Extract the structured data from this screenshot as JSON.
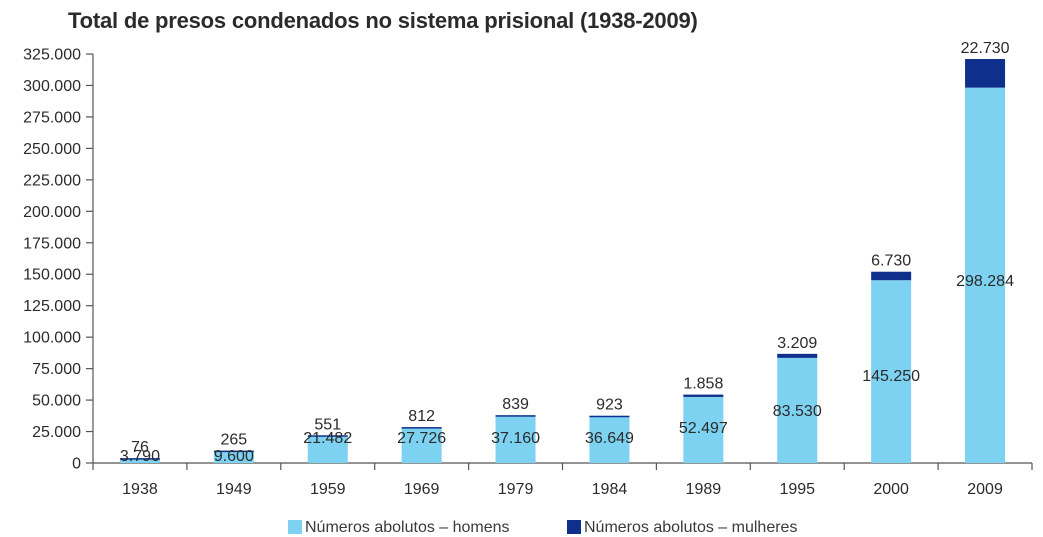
{
  "chart_data": {
    "type": "bar",
    "stacked": true,
    "title": "Total de presos condenados no sistema prisional (1938-2009)",
    "xlabel": "",
    "ylabel": "",
    "categories": [
      "1938",
      "1949",
      "1959",
      "1969",
      "1979",
      "1984",
      "1989",
      "1995",
      "2000",
      "2009"
    ],
    "series": [
      {
        "name": "Números abolutos – homens",
        "color": "#7dd1f1",
        "values": [
          3790,
          9600,
          21482,
          27726,
          37160,
          36649,
          52497,
          83530,
          145250,
          298284
        ],
        "labels": [
          "3.790",
          "9.600",
          "21.482",
          "27.726",
          "37.160",
          "36.649",
          "52.497",
          "83.530",
          "145.250",
          "298.284"
        ]
      },
      {
        "name": "Números abolutos – mulheres",
        "color": "#0f2f8c",
        "values": [
          76,
          265,
          551,
          812,
          839,
          923,
          1858,
          3209,
          6730,
          22730
        ],
        "labels": [
          "76",
          "265",
          "551",
          "812",
          "839",
          "923",
          "1.858",
          "3.209",
          "6.730",
          "22.730"
        ]
      }
    ],
    "ylim": [
      0,
      325000
    ],
    "yticks": [
      0,
      25000,
      50000,
      75000,
      100000,
      125000,
      150000,
      175000,
      200000,
      225000,
      250000,
      275000,
      300000,
      325000
    ],
    "ytick_labels": [
      "0",
      "25.000",
      "50.000",
      "75.000",
      "100.000",
      "125.000",
      "150.000",
      "175.000",
      "200.000",
      "225.000",
      "250.000",
      "275.000",
      "300.000",
      "325.000"
    ],
    "grid": false,
    "legend_position": "bottom-center"
  }
}
